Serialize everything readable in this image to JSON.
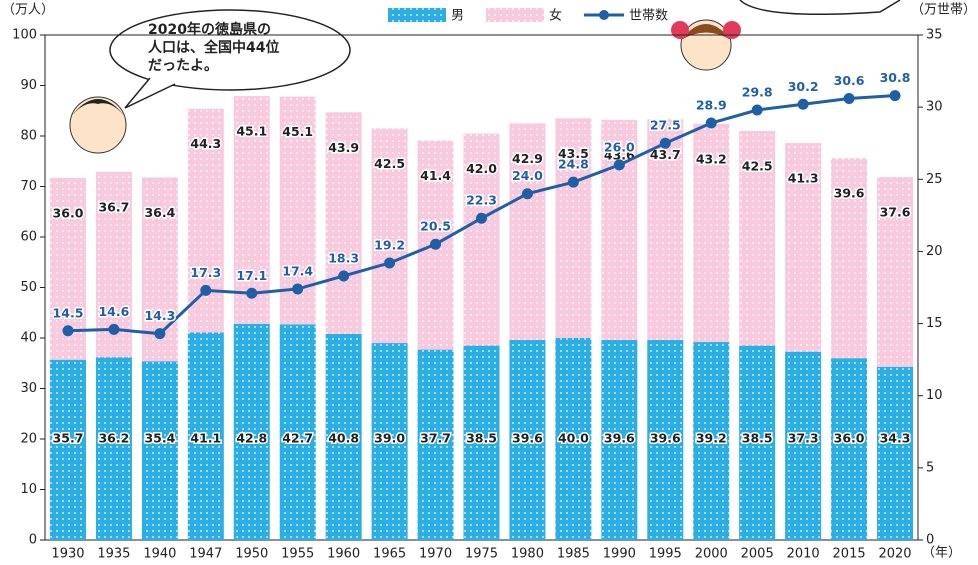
{
  "chart_data": {
    "type": "stacked-bar-line",
    "y_label": "（万人）",
    "y2_label": "（万世帯）",
    "x_label": "（年）",
    "annotation": [
      "2020年の徳島県の",
      "人口は、全国中44位",
      "だったよ。"
    ],
    "categories": [
      "1930",
      "1935",
      "1940",
      "1947",
      "1950",
      "1955",
      "1960",
      "1965",
      "1970",
      "1975",
      "1980",
      "1985",
      "1990",
      "1995",
      "2000",
      "2005",
      "2010",
      "2015",
      "2020"
    ],
    "series": [
      {
        "name": "男",
        "color": "#2aaee3",
        "values": [
          35.7,
          36.2,
          35.4,
          41.1,
          42.8,
          42.7,
          40.8,
          39.0,
          37.7,
          38.5,
          39.6,
          40.0,
          39.6,
          39.6,
          39.2,
          38.5,
          37.3,
          36.0,
          34.3
        ],
        "value_labels": [
          "35.7",
          "36.2",
          "35.4",
          "41.1",
          "42.8",
          "42.7",
          "40.8",
          "39.0",
          "37.7",
          "38.5",
          "39.6",
          "40.0",
          "39.6",
          "39.6",
          "39.2",
          "38.5",
          "37.3",
          "36.0",
          "34.3"
        ]
      },
      {
        "name": "女",
        "color": "#f8cade",
        "values": [
          36.0,
          36.7,
          36.4,
          44.3,
          45.1,
          45.1,
          43.9,
          42.5,
          41.4,
          42.0,
          42.9,
          43.5,
          43.6,
          43.7,
          43.2,
          42.5,
          41.3,
          39.6,
          37.6
        ],
        "value_labels": [
          "36.0",
          "36.7",
          "36.4",
          "44.3",
          "45.1",
          "45.1",
          "43.9",
          "42.5",
          "41.4",
          "42.0",
          "42.9",
          "43.5",
          "43.6",
          "43.7",
          "43.2",
          "42.5",
          "41.3",
          "39.6",
          "37.6"
        ]
      },
      {
        "name": "世帯数",
        "color": "#1f5fa8",
        "axis": "y2",
        "values": [
          14.5,
          14.6,
          14.3,
          17.3,
          17.1,
          17.4,
          18.3,
          19.2,
          20.5,
          22.3,
          24.0,
          24.8,
          26.0,
          27.5,
          28.9,
          29.8,
          30.2,
          30.6,
          30.8
        ],
        "value_labels": [
          "14.5",
          "14.6",
          "14.3",
          "17.3",
          "17.1",
          "17.4",
          "18.3",
          "19.2",
          "20.5",
          "22.3",
          "24.0",
          "24.8",
          "26.0",
          "27.5",
          "28.9",
          "29.8",
          "30.2",
          "30.6",
          "30.8"
        ]
      }
    ],
    "ylim": [
      0,
      100
    ],
    "yticks": [
      0,
      10,
      20,
      30,
      40,
      50,
      60,
      70,
      80,
      90,
      100
    ],
    "y2lim": [
      0,
      35
    ],
    "y2ticks": [
      0,
      5,
      10,
      15,
      20,
      25,
      30,
      35
    ]
  }
}
